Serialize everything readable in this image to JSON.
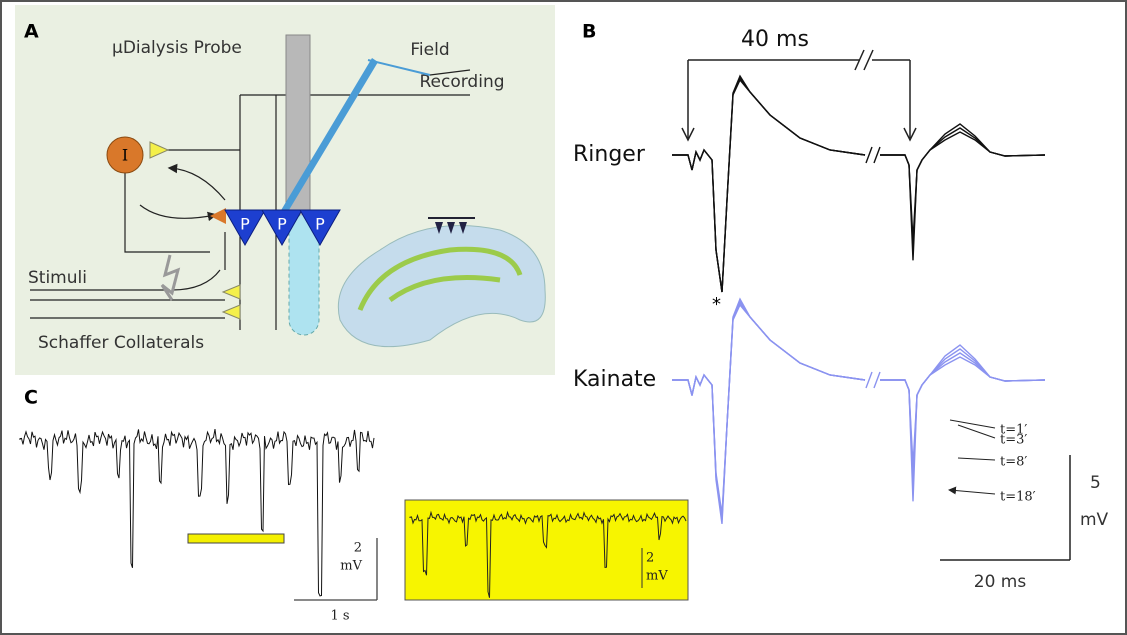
{
  "panels": {
    "a": {
      "label": "A",
      "probe_label": "μDialysis Probe",
      "recording_label": [
        "Field",
        "Recording"
      ],
      "interneuron": "I",
      "pyramidal": [
        "P",
        "P",
        "P"
      ],
      "stimuli": "Stimuli",
      "collaterals": "Schaffer Collaterals"
    },
    "b": {
      "label": "B",
      "interval": "40 ms",
      "ringer": "Ringer",
      "kainate": "Kainate",
      "asterisk": "*",
      "times": [
        "t=1′",
        "t=3′",
        "t=8′",
        "t=18′"
      ],
      "scale_y": [
        "5",
        "mV"
      ],
      "scale_x": "20 ms"
    },
    "c": {
      "label": "C",
      "scale_y": [
        "2",
        "mV"
      ],
      "scale_x": "1 s",
      "inset_scale": [
        "2",
        "mV"
      ]
    }
  }
}
